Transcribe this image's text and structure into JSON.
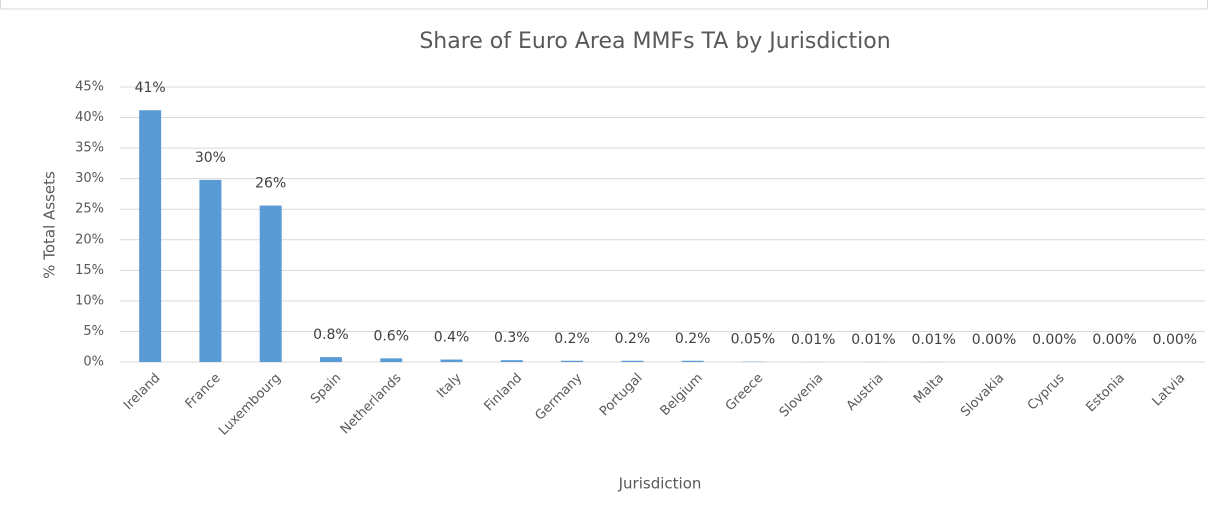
{
  "chart_data": {
    "type": "bar",
    "title": "Share of Euro Area MMFs TA by Jurisdiction",
    "x_label": "Jurisdiction",
    "y_label": "% Total Assets",
    "categories": [
      "Ireland",
      "France",
      "Luxembourg",
      "Spain",
      "Netherlands",
      "Italy",
      "Finland",
      "Germany",
      "Portugal",
      "Belgium",
      "Greece",
      "Slovenia",
      "Austria",
      "Malta",
      "Slovakia",
      "Cyprus",
      "Estonia",
      "Latvia"
    ],
    "values": [
      41.2,
      29.8,
      25.6,
      0.8,
      0.6,
      0.4,
      0.3,
      0.2,
      0.2,
      0.2,
      0.05,
      0.01,
      0.01,
      0.01,
      0,
      0,
      0,
      0
    ],
    "value_labels": [
      "41%",
      "30%",
      "26%",
      "0.8%",
      "0.6%",
      "0.4%",
      "0.3%",
      "0.2%",
      "0.2%",
      "0.2%",
      "0.05%",
      "0.01%",
      "0.01%",
      "0.01%",
      "0.00%",
      "0.00%",
      "0.00%",
      "0.00%"
    ],
    "color": "#5b9bd5",
    "ylim": [
      0,
      45
    ],
    "yticks": [
      {
        "value": 0,
        "label": "0%"
      },
      {
        "value": 5,
        "label": "5%"
      },
      {
        "value": 10,
        "label": "10%"
      },
      {
        "value": 15,
        "label": "15%"
      },
      {
        "value": 20,
        "label": "20%"
      },
      {
        "value": 25,
        "label": "25%"
      },
      {
        "value": 30,
        "label": "30%"
      },
      {
        "value": 35,
        "label": "35%"
      },
      {
        "value": 40,
        "label": "40%"
      },
      {
        "value": 45,
        "label": "45%"
      }
    ],
    "grid": true
  }
}
